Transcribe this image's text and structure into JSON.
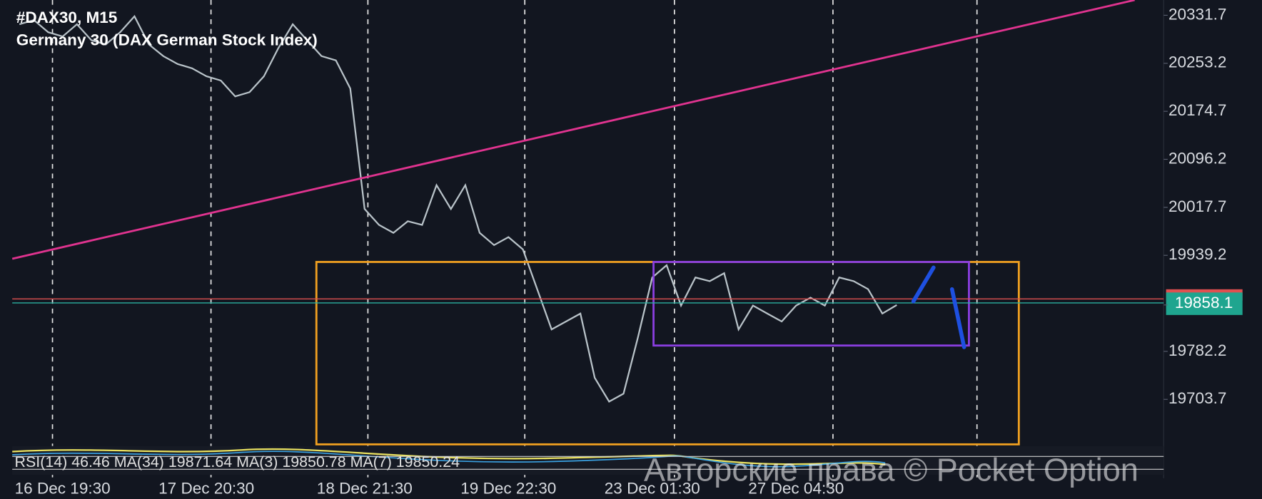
{
  "chart_data": {
    "type": "line",
    "title": "#DAX30, M15",
    "subtitle": "Germany 30 (DAX German Stock Index)",
    "indicator_label": "RSI(14) 46.46 MA(34) 19871.64 MA(3) 19850.78 MA(7) 19850.24",
    "current_price_label": "19858.1",
    "watermark": "Авторские права © Pocket Option",
    "categories": [
      null,
      null,
      null,
      "16 Dec 19:30",
      null,
      null,
      null,
      null,
      null,
      null,
      null,
      null,
      null,
      "17 Dec 20:30",
      null,
      null,
      null,
      null,
      null,
      null,
      null,
      null,
      null,
      null,
      "18 Dec 21:30",
      null,
      null,
      null,
      null,
      null,
      null,
      null,
      null,
      null,
      "19 Dec 22:30",
      null,
      null,
      null,
      null,
      null,
      null,
      null,
      null,
      null,
      "23 Dec 01:30",
      null,
      null,
      null,
      null,
      null,
      null,
      null,
      null,
      null,
      "27 Dec 04:30",
      null,
      null,
      null,
      null,
      null,
      null,
      null,
      null,
      null,
      null,
      null,
      null,
      null,
      null,
      null,
      null,
      null,
      null,
      null,
      null,
      null,
      null,
      null,
      null,
      null
    ],
    "series": [
      {
        "name": "DAX30",
        "color": "#b9c3c9",
        "values": [
          20317,
          20324,
          20304,
          20297,
          20317,
          20291,
          20284,
          20304,
          20330,
          20284,
          20265,
          20252,
          20245,
          20232,
          20225,
          20199,
          20206,
          20232,
          20278,
          20317,
          20291,
          20265,
          20258,
          20212,
          20015,
          19989,
          19976,
          19995,
          19989,
          20054,
          20015,
          20054,
          19976,
          19956,
          19969,
          19949,
          19884,
          19818,
          19831,
          19844,
          19739,
          19700,
          19713,
          19805,
          19903,
          19923,
          19857,
          19903,
          19897,
          19910,
          19818,
          19857,
          19844,
          19831,
          19857,
          19870,
          19857,
          19903,
          19897,
          19884,
          19844,
          19858,
          null,
          null,
          null,
          null,
          null,
          null,
          null,
          null,
          null,
          null,
          null,
          null,
          null,
          null,
          null,
          null,
          null,
          null
        ]
      }
    ],
    "ylim": [
      19627.5,
      20356.7
    ],
    "yticks": [
      19703.7,
      19782.2,
      19858.1,
      19939.2,
      20017.7,
      20096.2,
      20174.7,
      20253.2,
      20331.7
    ],
    "grid": false
  }
}
